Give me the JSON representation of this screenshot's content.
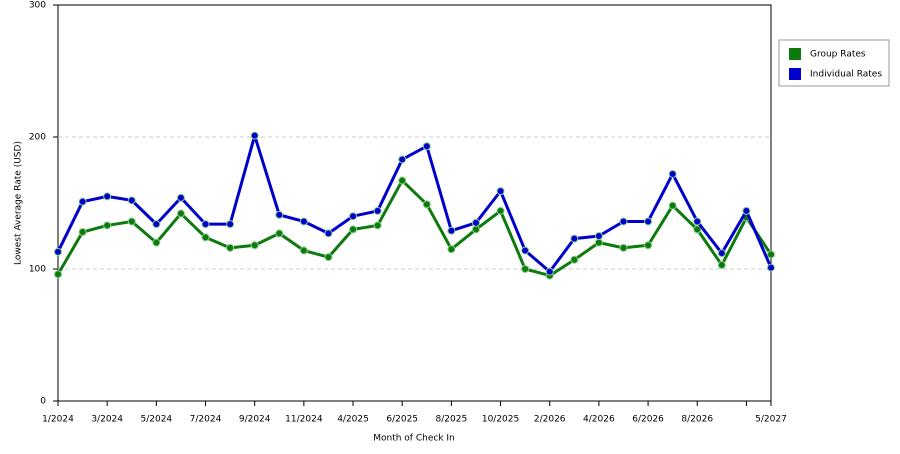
{
  "chart_data": {
    "type": "line",
    "y_label": "Lowest Average Rate (USD)",
    "x_label": "Month of Check In",
    "categories": [
      "1/2024",
      null,
      "3/2024",
      null,
      "5/2024",
      null,
      "7/2024",
      null,
      "9/2024",
      null,
      "11/2024",
      null,
      "4/2025",
      null,
      "6/2025",
      null,
      "8/2025",
      null,
      "10/2025",
      null,
      "2/2026",
      null,
      "4/2026",
      null,
      "6/2026",
      null,
      "8/2026",
      null,
      null,
      "5/2027"
    ],
    "series": [
      {
        "name": "Group Rates",
        "color": "#0d7a0d",
        "values": [
          96,
          128,
          133,
          136,
          120,
          142,
          124,
          116,
          118,
          127,
          114,
          109,
          130,
          133,
          167,
          149,
          115,
          130,
          144,
          100,
          95,
          107,
          120,
          116,
          118,
          148,
          130,
          103,
          139,
          111
        ]
      },
      {
        "name": "Individual Rates",
        "color": "#0000cc",
        "values": [
          113,
          151,
          155,
          152,
          134,
          154,
          134,
          134,
          201,
          141,
          136,
          127,
          140,
          144,
          183,
          193,
          129,
          135,
          159,
          114,
          98,
          123,
          125,
          136,
          136,
          172,
          136,
          112,
          144,
          101
        ]
      }
    ],
    "ylim": [
      0,
      300
    ],
    "yticks": [
      0,
      100,
      200,
      300
    ],
    "grid": true,
    "legend": "right"
  }
}
